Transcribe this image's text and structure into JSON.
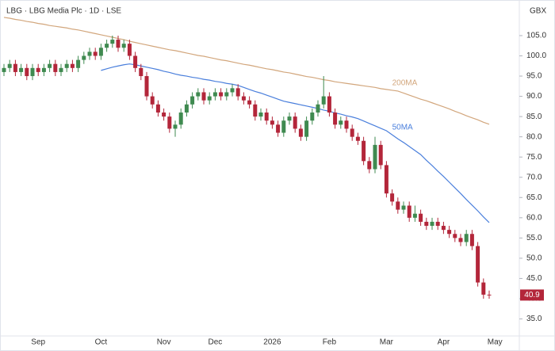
{
  "chart_data": {
    "type": "candlestick",
    "title": "LBG · LBG Media Plc · 1D · LSE",
    "currency": "GBX",
    "categories": [
      null,
      null,
      null,
      null,
      null,
      null,
      "Sep",
      null,
      null,
      null,
      null,
      null,
      null,
      null,
      null,
      null,
      null,
      "Oct",
      null,
      null,
      null,
      null,
      null,
      null,
      null,
      null,
      null,
      null,
      "Nov",
      null,
      null,
      null,
      null,
      null,
      null,
      null,
      null,
      "Dec",
      null,
      null,
      null,
      null,
      null,
      null,
      null,
      null,
      null,
      "2026",
      null,
      null,
      null,
      null,
      null,
      null,
      null,
      null,
      null,
      "Feb",
      null,
      null,
      null,
      null,
      null,
      null,
      null,
      null,
      null,
      "Mar",
      null,
      null,
      null,
      null,
      null,
      null,
      null,
      null,
      null,
      "Apr",
      null,
      null,
      null,
      null,
      null,
      null,
      null,
      null,
      "May"
    ],
    "open": [
      96,
      97,
      98,
      96,
      97,
      95,
      97,
      96,
      97,
      98,
      96,
      97,
      98,
      97,
      99,
      100,
      101,
      100,
      102,
      103,
      104,
      102,
      103,
      100,
      97,
      95,
      90,
      88,
      86,
      85,
      82,
      83,
      86,
      88,
      90,
      91,
      89,
      90,
      91,
      90,
      91,
      92,
      90,
      89,
      88,
      85,
      86,
      84,
      83,
      81,
      84,
      85,
      82,
      80,
      84,
      86,
      88,
      90,
      86,
      83,
      84,
      82,
      80,
      79,
      74,
      72,
      78,
      73,
      66,
      64,
      62,
      63,
      60,
      61,
      59,
      58,
      59,
      58,
      57,
      56,
      55,
      54,
      56,
      53,
      44,
      41,
      null
    ],
    "high": [
      98,
      99,
      99,
      98,
      98,
      98,
      98,
      98,
      99,
      99,
      98,
      99,
      99,
      100,
      101,
      102,
      102,
      103,
      104,
      105,
      105,
      104,
      104,
      101,
      98,
      96,
      91,
      89,
      87,
      86,
      84,
      87,
      89,
      91,
      92,
      92,
      91,
      92,
      92,
      92,
      93,
      93,
      91,
      90,
      89,
      87,
      87,
      85,
      84,
      85,
      86,
      86,
      83,
      85,
      87,
      89,
      95,
      91,
      87,
      85,
      85,
      83,
      81,
      80,
      75,
      80,
      79,
      74,
      67,
      65,
      64,
      64,
      63,
      62,
      60,
      60,
      60,
      59,
      58,
      57,
      56,
      57,
      57,
      54,
      45,
      42,
      null
    ],
    "low": [
      95,
      96,
      95,
      95,
      94,
      94,
      95,
      95,
      96,
      95,
      95,
      96,
      96,
      96,
      98,
      99,
      99,
      99,
      101,
      102,
      101,
      101,
      99,
      96,
      94,
      89,
      87,
      85,
      84,
      81,
      80,
      82,
      85,
      87,
      89,
      88,
      88,
      89,
      89,
      89,
      90,
      89,
      88,
      87,
      84,
      84,
      83,
      82,
      80,
      80,
      83,
      81,
      79,
      79,
      83,
      85,
      87,
      85,
      82,
      82,
      81,
      79,
      78,
      73,
      71,
      71,
      72,
      65,
      63,
      61,
      61,
      59,
      59,
      58,
      57,
      57,
      57,
      56,
      55,
      54,
      53,
      53,
      52,
      43,
      40,
      40,
      null
    ],
    "close": [
      97,
      98,
      96,
      97,
      95,
      97,
      96,
      97,
      98,
      96,
      97,
      98,
      97,
      99,
      100,
      101,
      100,
      102,
      103,
      104,
      102,
      103,
      100,
      97,
      95,
      90,
      88,
      86,
      85,
      82,
      83,
      86,
      88,
      90,
      91,
      89,
      90,
      91,
      90,
      91,
      92,
      90,
      89,
      88,
      85,
      86,
      84,
      83,
      81,
      84,
      85,
      82,
      80,
      84,
      86,
      88,
      90,
      86,
      83,
      84,
      82,
      80,
      79,
      74,
      72,
      78,
      73,
      66,
      64,
      62,
      63,
      60,
      61,
      59,
      58,
      59,
      58,
      57,
      56,
      55,
      54,
      56,
      53,
      44,
      41,
      40.9,
      null
    ],
    "up_color": "#3f8a50",
    "down_color": "#b3263a",
    "moving_averages": [
      {
        "name": "200MA",
        "color": "#d2a67c",
        "values": [
          109.5,
          109.3,
          109.0,
          108.8,
          108.5,
          108.3,
          108.0,
          107.8,
          107.5,
          107.3,
          107.1,
          106.9,
          106.6,
          106.4,
          106.1,
          105.8,
          105.5,
          105.2,
          104.9,
          104.6,
          104.3,
          104.0,
          103.6,
          103.3,
          103.0,
          102.7,
          102.4,
          102.1,
          101.8,
          101.5,
          101.3,
          101.0,
          100.7,
          100.4,
          100.1,
          99.9,
          99.6,
          99.3,
          99.0,
          98.8,
          98.5,
          98.2,
          97.9,
          97.7,
          97.4,
          97.1,
          96.8,
          96.6,
          96.3,
          96.0,
          95.8,
          95.5,
          95.2,
          94.9,
          94.7,
          94.4,
          94.1,
          93.9,
          93.6,
          93.4,
          93.2,
          93.0,
          92.8,
          92.6,
          92.4,
          92.2,
          91.9,
          91.7,
          91.5,
          91.3,
          90.8,
          90.3,
          89.8,
          89.3,
          88.9,
          88.4,
          87.9,
          87.4,
          86.9,
          86.3,
          85.8,
          85.2,
          84.7,
          84.2,
          83.6,
          83.1,
          null
        ]
      },
      {
        "name": "50MA",
        "color": "#4a7fdc",
        "values": [
          null,
          null,
          null,
          null,
          null,
          null,
          null,
          null,
          null,
          null,
          null,
          null,
          null,
          null,
          null,
          null,
          null,
          96.4,
          96.8,
          97.2,
          97.5,
          97.8,
          98.0,
          97.8,
          97.5,
          97.2,
          96.9,
          96.6,
          96.2,
          95.9,
          95.5,
          95.2,
          95.0,
          94.7,
          94.5,
          94.2,
          94.0,
          93.7,
          93.5,
          93.2,
          93.0,
          92.7,
          92.2,
          91.7,
          91.2,
          90.8,
          90.3,
          89.8,
          89.3,
          88.8,
          88.5,
          88.2,
          87.9,
          87.6,
          87.3,
          87.0,
          86.6,
          86.3,
          85.9,
          85.6,
          85.2,
          84.9,
          84.5,
          83.9,
          83.3,
          82.7,
          82.1,
          81.5,
          80.5,
          79.5,
          78.6,
          77.6,
          76.6,
          75.6,
          74.2,
          72.9,
          71.5,
          70.2,
          68.8,
          67.4,
          66.0,
          64.5,
          63.1,
          61.7,
          60.2,
          58.8,
          null
        ]
      }
    ],
    "ylim": [
      30.6,
      113.8
    ],
    "yticks": [
      {
        "value": 35,
        "label": "35.0"
      },
      {
        "value": 40,
        "label": "40.0"
      },
      {
        "value": 45,
        "label": "45.0"
      },
      {
        "value": 50,
        "label": "50.0"
      },
      {
        "value": 55,
        "label": "55.0"
      },
      {
        "value": 60,
        "label": "60.0"
      },
      {
        "value": 65,
        "label": "65.0"
      },
      {
        "value": 70,
        "label": "70.0"
      },
      {
        "value": 75,
        "label": "75.0"
      },
      {
        "value": 80,
        "label": "80.0"
      },
      {
        "value": 85,
        "label": "85.0"
      },
      {
        "value": 90,
        "label": "90.0"
      },
      {
        "value": 95,
        "label": "95.0"
      },
      {
        "value": 100,
        "label": "100.0"
      },
      {
        "value": 105,
        "label": "105.0"
      }
    ]
  }
}
